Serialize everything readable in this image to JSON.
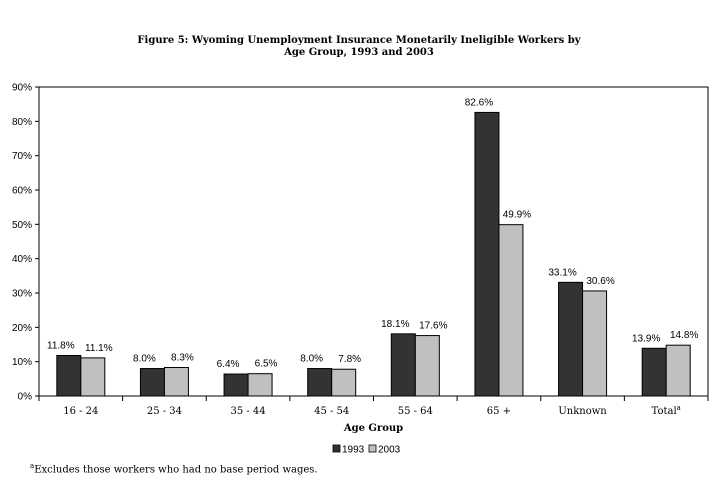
{
  "title_line1": "Figure 5: Wyoming Unemployment Insurance Monetarily Ineligible Workers by",
  "title_line2": "Age Group, 1993 and 2003",
  "footnote_marker": "a",
  "footnote_text": "Excludes those workers who had no base period wages.",
  "chart_data": {
    "type": "bar",
    "title": "Figure 5: Wyoming Unemployment Insurance Monetarily Ineligible Workers by Age Group, 1993 and 2003",
    "xlabel": "Age Group",
    "ylabel": "",
    "categories": [
      "16 - 24",
      "25 - 34",
      "35 - 44",
      "45 - 54",
      "55 - 64",
      "65 +",
      "Unknown",
      "Total"
    ],
    "category_superscripts": [
      "",
      "",
      "",
      "",
      "",
      "",
      "",
      "a"
    ],
    "series": [
      {
        "name": "1993",
        "color": "#333333",
        "values": [
          11.8,
          8.0,
          6.4,
          8.0,
          18.1,
          82.6,
          33.1,
          13.9
        ],
        "labels": [
          "11.8%",
          "8.0%",
          "6.4%",
          "8.0%",
          "18.1%",
          "82.6%",
          "33.1%",
          "13.9%"
        ]
      },
      {
        "name": "2003",
        "color": "#c0c0c0",
        "values": [
          11.1,
          8.3,
          6.5,
          7.8,
          17.6,
          49.9,
          30.6,
          14.8
        ],
        "labels": [
          "11.1%",
          "8.3%",
          "6.5%",
          "7.8%",
          "17.6%",
          "49.9%",
          "30.6%",
          "14.8%"
        ]
      }
    ],
    "ylim": [
      0,
      90
    ],
    "yticks": [
      0,
      10,
      20,
      30,
      40,
      50,
      60,
      70,
      80,
      90
    ],
    "ytick_labels": [
      "0%",
      "10%",
      "20%",
      "30%",
      "40%",
      "50%",
      "60%",
      "70%",
      "80%",
      "90%"
    ],
    "grid": false,
    "legend_position": "bottom"
  }
}
